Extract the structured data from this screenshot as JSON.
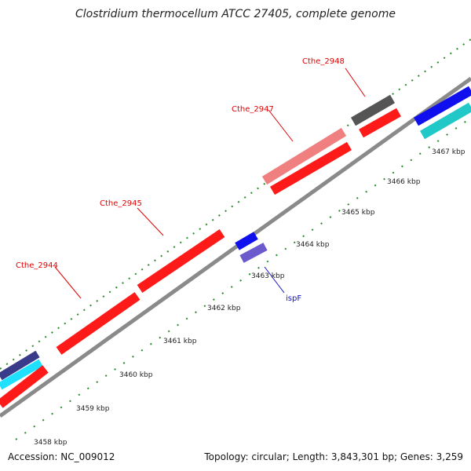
{
  "title": "Clostridium thermocellum ATCC 27405, complete genome",
  "footer": {
    "accession": "Accession: NC_009012",
    "topology": "Topology: circular; Length: 3,843,301 bp; Genes: 3,259"
  },
  "colors": {
    "backbone": "#8a8a8a",
    "tick_dot": "#2a8a2a",
    "cds_red": "#ff1a1a",
    "cds_pink": "#f08080",
    "cds_dark_gray": "#555555",
    "cds_blue": "#1010ee",
    "cds_slate": "#6a5acd",
    "cds_cyan": "#20c8c8",
    "label_red": "#e00000",
    "label_blue": "#1010cc"
  },
  "gene_labels": [
    "Cthe_2944",
    "Cthe_2945",
    "Cthe_2947",
    "Cthe_2948",
    "ispF"
  ],
  "ticks": [
    "3458 kbp",
    "3459 kbp",
    "3460 kbp",
    "3461 kbp",
    "3462 kbp",
    "3463 kbp",
    "3464 kbp",
    "3465 kbp",
    "3466 kbp",
    "3467 kbp"
  ]
}
